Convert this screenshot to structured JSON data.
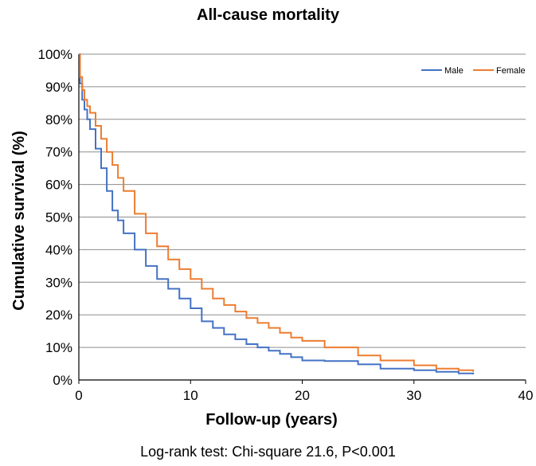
{
  "chart_data": {
    "type": "line",
    "title": "All-cause mortality",
    "xlabel": "Follow-up (years)",
    "ylabel": "Cumulative survival (%)",
    "xlim": [
      0,
      40
    ],
    "ylim": [
      0,
      100
    ],
    "x_ticks": [
      "0",
      "10",
      "20",
      "30",
      "40"
    ],
    "y_ticks": [
      "0%",
      "10%",
      "20%",
      "30%",
      "40%",
      "50%",
      "60%",
      "70%",
      "80%",
      "90%",
      "100%"
    ],
    "grid": true,
    "legend_position": "top-right",
    "step": true,
    "series": [
      {
        "name": "Male",
        "color": "#4472C4",
        "x": [
          0,
          0.1,
          0.3,
          0.5,
          0.75,
          1,
          1.5,
          2,
          2.5,
          3,
          3.5,
          4,
          5,
          6,
          7,
          8,
          9,
          10,
          11,
          12,
          13,
          14,
          15,
          16,
          17,
          18,
          19,
          20,
          22,
          25,
          27,
          30,
          32,
          34,
          35.3
        ],
        "values": [
          100,
          91,
          86,
          83,
          80,
          77,
          71,
          65,
          58,
          52,
          49,
          45,
          40,
          35,
          31,
          28,
          25,
          22,
          18,
          16,
          14,
          12.5,
          11,
          10,
          9,
          8,
          7,
          6,
          5.8,
          4.8,
          3.5,
          3,
          2.5,
          2,
          1.7
        ]
      },
      {
        "name": "Female",
        "color": "#ED7D31",
        "x": [
          0,
          0.1,
          0.3,
          0.5,
          0.75,
          1,
          1.5,
          2,
          2.5,
          3,
          3.5,
          4,
          5,
          6,
          7,
          8,
          9,
          10,
          11,
          12,
          13,
          14,
          15,
          16,
          17,
          18,
          19,
          20,
          22,
          25,
          27,
          30,
          32,
          34,
          35.3
        ],
        "values": [
          100,
          93,
          89,
          86,
          84,
          82,
          78,
          74,
          70,
          66,
          62,
          58,
          51,
          45,
          41,
          37,
          34,
          31,
          28,
          25,
          23,
          21,
          19,
          17.5,
          16,
          14.5,
          13,
          12,
          10,
          7.5,
          6,
          4.5,
          3.5,
          3,
          2.5
        ]
      }
    ]
  },
  "footnote": "Log-rank test: Chi-square 21.6, P<0.001"
}
